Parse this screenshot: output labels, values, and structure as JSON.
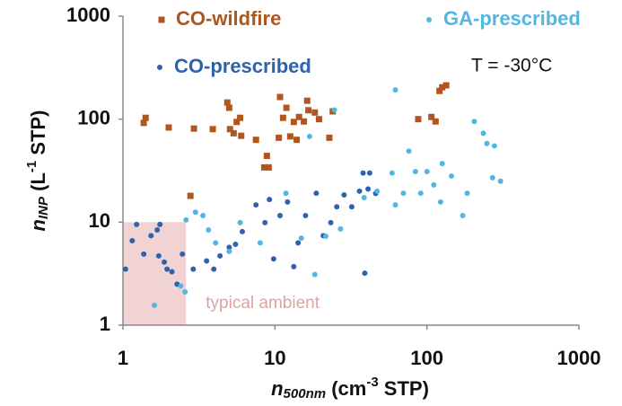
{
  "chart_data": {
    "type": "scatter",
    "xscale": "log",
    "yscale": "log",
    "xlim": [
      1,
      1000
    ],
    "ylim": [
      1,
      1000
    ],
    "xticks": [
      1,
      10,
      100,
      1000
    ],
    "yticks": [
      1,
      10,
      100,
      1000
    ],
    "xlabel": {
      "symbol": "n",
      "subscript": "500nm",
      "unit_start": " (cm",
      "superscript": "-3",
      "unit_end": " STP)"
    },
    "ylabel": {
      "symbol": "n",
      "subscript": "INP",
      "unit_start": " (L",
      "superscript": "-1",
      "unit_end": " STP)"
    },
    "annotation": "T = -30°C",
    "region": {
      "label": "typical ambient",
      "color": "#f2d3d3",
      "label_color": "#dba3a3",
      "x": [
        1,
        2.6
      ],
      "y": [
        1,
        10
      ]
    },
    "series": [
      {
        "name": "CO-wildfire",
        "color": "#b0561f",
        "marker": "square",
        "x": [
          1.37,
          1.41,
          2.0,
          2.93,
          3.9,
          4.86,
          5.06,
          5.35,
          5.6,
          5.9,
          6.0,
          5.0,
          7.5,
          8.5,
          8.85,
          9.1,
          10.6,
          10.8,
          11.3,
          11.9,
          12.6,
          13.3,
          13.9,
          14.4,
          15.5,
          16.6,
          18.3,
          19.5,
          22.8,
          24,
          16.3,
          2.78,
          87.6,
          107,
          114,
          121,
          126,
          134
        ],
        "y": [
          92,
          103,
          83,
          81,
          80,
          145,
          80,
          73,
          94,
          103,
          69,
          129,
          63,
          34,
          44,
          34,
          66,
          164,
          103,
          129,
          68,
          94,
          63,
          105,
          95,
          122,
          116,
          100,
          66,
          119,
          151,
          18,
          100,
          105,
          95,
          188,
          204,
          213
        ]
      },
      {
        "name": "CO-prescribed",
        "color": "#2f62ad",
        "marker": "circle",
        "x": [
          1.04,
          1.15,
          1.23,
          1.37,
          1.53,
          1.68,
          1.72,
          1.87,
          1.95,
          2.1,
          2.27,
          2.46,
          1.75,
          2.9,
          3.55,
          3.96,
          4.35,
          5.0,
          5.5,
          6.1,
          7.5,
          8.6,
          9.2,
          9.8,
          10.8,
          12.1,
          13.3,
          14.2,
          15.9,
          18.7,
          20.8,
          23.3,
          25.5,
          28.5,
          32,
          36,
          38,
          39,
          41,
          42,
          46
        ],
        "y": [
          3.5,
          6.6,
          9.5,
          4.9,
          7.4,
          8.4,
          4.7,
          4.1,
          3.5,
          3.3,
          2.5,
          4.9,
          9.5,
          3.5,
          4.2,
          3.5,
          4.7,
          5.7,
          6.1,
          8.1,
          14.7,
          9.9,
          16.6,
          4.4,
          11.6,
          15.7,
          3.7,
          6.3,
          11.6,
          19.1,
          7.4,
          9.9,
          14.1,
          18.4,
          14.1,
          20,
          30,
          3.2,
          21,
          30,
          19
        ]
      },
      {
        "name": "GA-prescribed",
        "color": "#52b6e3",
        "marker": "circle",
        "x": [
          1.61,
          2.4,
          2.56,
          2.6,
          3.0,
          3.36,
          3.65,
          4.07,
          5.0,
          5.9,
          8.0,
          11.8,
          14.9,
          16.9,
          18.3,
          21.6,
          24.6,
          27,
          38.6,
          47,
          62,
          59,
          62,
          70,
          76,
          84,
          91,
          100,
          111,
          123,
          126,
          145,
          184,
          205,
          235,
          248,
          278,
          270,
          305,
          172
        ],
        "y": [
          1.56,
          2.4,
          2.1,
          10.5,
          12.5,
          11.6,
          8.4,
          6.3,
          5.2,
          9.9,
          6.3,
          19.1,
          7.0,
          68,
          3.1,
          7.3,
          123,
          8.6,
          17.3,
          20,
          192,
          30,
          14.7,
          19.1,
          49,
          31,
          19.1,
          31,
          23,
          15.7,
          37,
          28,
          19.1,
          95,
          73,
          58,
          55,
          27,
          25,
          11.6
        ]
      }
    ]
  }
}
